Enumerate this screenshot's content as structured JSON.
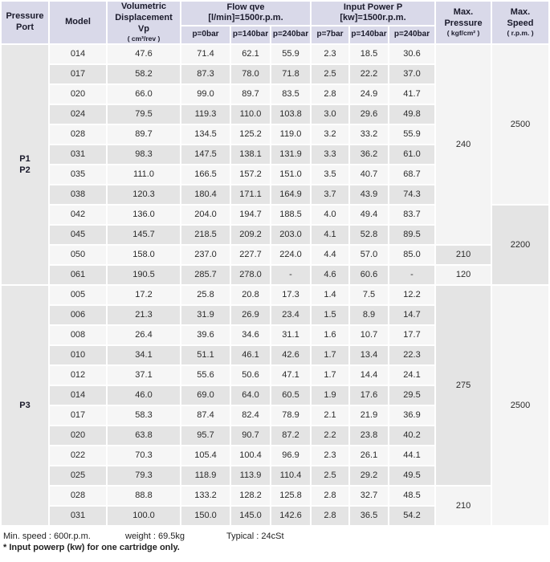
{
  "table": {
    "header": {
      "pressure_port": "Pressure Port",
      "model": "Model",
      "vp_label": "Volumetric Displacement",
      "vp_symbol": "Vp",
      "vp_unit": "( cm³/rev )",
      "flow_group_line1": "Flow qve",
      "flow_group_line2": "[l/min]=1500r.p.m.",
      "power_group_line1": "Input Power P",
      "power_group_line2": "[kw]=1500r.p.m.",
      "flow_subcols": [
        "p=0bar",
        "p=140bar",
        "p=240bar"
      ],
      "power_subcols": [
        "p=7bar",
        "p=140bar",
        "p=240bar"
      ],
      "max_pressure_line1": "Max.",
      "max_pressure_line2": "Pressure",
      "max_pressure_unit": "( kgf/cm² )",
      "max_speed_line1": "Max.",
      "max_speed_line2": "Speed",
      "max_speed_unit": "( r.p.m. )"
    },
    "sections": [
      {
        "port_lines": [
          "P1",
          "P2"
        ],
        "rows": [
          {
            "model": "014",
            "vp": "47.6",
            "flow": [
              "71.4",
              "62.1",
              "55.9"
            ],
            "power": [
              "2.3",
              "18.5",
              "30.6"
            ]
          },
          {
            "model": "017",
            "vp": "58.2",
            "flow": [
              "87.3",
              "78.0",
              "71.8"
            ],
            "power": [
              "2.5",
              "22.2",
              "37.0"
            ]
          },
          {
            "model": "020",
            "vp": "66.0",
            "flow": [
              "99.0",
              "89.7",
              "83.5"
            ],
            "power": [
              "2.8",
              "24.9",
              "41.7"
            ]
          },
          {
            "model": "024",
            "vp": "79.5",
            "flow": [
              "119.3",
              "110.0",
              "103.8"
            ],
            "power": [
              "3.0",
              "29.6",
              "49.8"
            ]
          },
          {
            "model": "028",
            "vp": "89.7",
            "flow": [
              "134.5",
              "125.2",
              "119.0"
            ],
            "power": [
              "3.2",
              "33.2",
              "55.9"
            ]
          },
          {
            "model": "031",
            "vp": "98.3",
            "flow": [
              "147.5",
              "138.1",
              "131.9"
            ],
            "power": [
              "3.3",
              "36.2",
              "61.0"
            ]
          },
          {
            "model": "035",
            "vp": "111.0",
            "flow": [
              "166.5",
              "157.2",
              "151.0"
            ],
            "power": [
              "3.5",
              "40.7",
              "68.7"
            ]
          },
          {
            "model": "038",
            "vp": "120.3",
            "flow": [
              "180.4",
              "171.1",
              "164.9"
            ],
            "power": [
              "3.7",
              "43.9",
              "74.3"
            ]
          },
          {
            "model": "042",
            "vp": "136.0",
            "flow": [
              "204.0",
              "194.7",
              "188.5"
            ],
            "power": [
              "4.0",
              "49.4",
              "83.7"
            ]
          },
          {
            "model": "045",
            "vp": "145.7",
            "flow": [
              "218.5",
              "209.2",
              "203.0"
            ],
            "power": [
              "4.1",
              "52.8",
              "89.5"
            ]
          },
          {
            "model": "050",
            "vp": "158.0",
            "flow": [
              "237.0",
              "227.7",
              "224.0"
            ],
            "power": [
              "4.4",
              "57.0",
              "85.0"
            ]
          },
          {
            "model": "061",
            "vp": "190.5",
            "flow": [
              "285.7",
              "278.0",
              "-"
            ],
            "power": [
              "4.6",
              "60.6",
              "-"
            ]
          }
        ],
        "max_pressure_cells": [
          {
            "value": "240",
            "rowspan": 10,
            "shade": "light"
          },
          {
            "value": "210",
            "rowspan": 1,
            "shade": "dark"
          },
          {
            "value": "120",
            "rowspan": 1,
            "shade": "light"
          }
        ],
        "max_speed_cells": [
          {
            "value": "2500",
            "rowspan": 8,
            "shade": "light"
          },
          {
            "value": "2200",
            "rowspan": 4,
            "shade": "dark"
          }
        ]
      },
      {
        "port_lines": [
          "P3"
        ],
        "rows": [
          {
            "model": "005",
            "vp": "17.2",
            "flow": [
              "25.8",
              "20.8",
              "17.3"
            ],
            "power": [
              "1.4",
              "7.5",
              "12.2"
            ]
          },
          {
            "model": "006",
            "vp": "21.3",
            "flow": [
              "31.9",
              "26.9",
              "23.4"
            ],
            "power": [
              "1.5",
              "8.9",
              "14.7"
            ]
          },
          {
            "model": "008",
            "vp": "26.4",
            "flow": [
              "39.6",
              "34.6",
              "31.1"
            ],
            "power": [
              "1.6",
              "10.7",
              "17.7"
            ]
          },
          {
            "model": "010",
            "vp": "34.1",
            "flow": [
              "51.1",
              "46.1",
              "42.6"
            ],
            "power": [
              "1.7",
              "13.4",
              "22.3"
            ]
          },
          {
            "model": "012",
            "vp": "37.1",
            "flow": [
              "55.6",
              "50.6",
              "47.1"
            ],
            "power": [
              "1.7",
              "14.4",
              "24.1"
            ]
          },
          {
            "model": "014",
            "vp": "46.0",
            "flow": [
              "69.0",
              "64.0",
              "60.5"
            ],
            "power": [
              "1.9",
              "17.6",
              "29.5"
            ]
          },
          {
            "model": "017",
            "vp": "58.3",
            "flow": [
              "87.4",
              "82.4",
              "78.9"
            ],
            "power": [
              "2.1",
              "21.9",
              "36.9"
            ]
          },
          {
            "model": "020",
            "vp": "63.8",
            "flow": [
              "95.7",
              "90.7",
              "87.2"
            ],
            "power": [
              "2.2",
              "23.8",
              "40.2"
            ]
          },
          {
            "model": "022",
            "vp": "70.3",
            "flow": [
              "105.4",
              "100.4",
              "96.9"
            ],
            "power": [
              "2.3",
              "26.1",
              "44.1"
            ]
          },
          {
            "model": "025",
            "vp": "79.3",
            "flow": [
              "118.9",
              "113.9",
              "110.4"
            ],
            "power": [
              "2.5",
              "29.2",
              "49.5"
            ]
          },
          {
            "model": "028",
            "vp": "88.8",
            "flow": [
              "133.2",
              "128.2",
              "125.8"
            ],
            "power": [
              "2.8",
              "32.7",
              "48.5"
            ]
          },
          {
            "model": "031",
            "vp": "100.0",
            "flow": [
              "150.0",
              "145.0",
              "142.6"
            ],
            "power": [
              "2.8",
              "36.5",
              "54.2"
            ]
          }
        ],
        "max_pressure_cells": [
          {
            "value": "275",
            "rowspan": 10,
            "shade": "dark"
          },
          {
            "value": "210",
            "rowspan": 2,
            "shade": "light"
          }
        ],
        "max_speed_cells": [
          {
            "value": "2500",
            "rowspan": 12,
            "shade": "light"
          }
        ]
      }
    ]
  },
  "footer": {
    "min_speed": "Min. speed : 600r.p.m.",
    "weight": "weight : 69.5kg",
    "typical": "Typical : 24cSt",
    "note": "* Input powerp (kw) for one cartridge only."
  },
  "colors": {
    "header_bg": "#d9d9e9",
    "row_light": "#f6f6f6",
    "row_dark": "#e4e4e4",
    "section_bg": "#e7e7e7",
    "merged_light": "#f4f4f4",
    "text": "#2b2b2b"
  }
}
